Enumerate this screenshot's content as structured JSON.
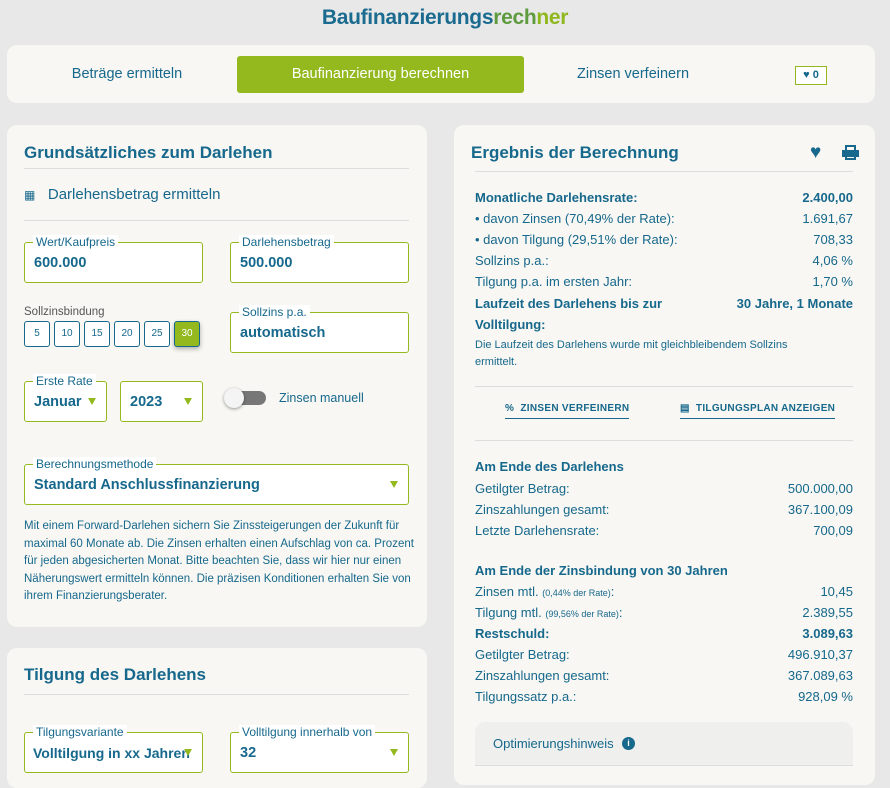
{
  "title": {
    "part1": "Baufinanzierungs",
    "part2": "rech",
    "part3": "ner"
  },
  "nav": {
    "items": [
      "Beträge ermitteln",
      "Baufinanzierung berechnen",
      "Zinsen verfeinern"
    ],
    "favorites_count": "0"
  },
  "colors": {
    "primary": "#16688c",
    "accent": "#93b91f"
  },
  "darlehen": {
    "title": "Grundsätzliches zum Darlehen",
    "calc_link": "Darlehensbetrag ermitteln",
    "kaufpreis": {
      "label": "Wert/Kaufpreis",
      "value": "600.000"
    },
    "betrag": {
      "label": "Darlehensbetrag",
      "value": "500.000"
    },
    "sollzinsbindung": {
      "label": "Sollzinsbindung",
      "options": [
        "5",
        "10",
        "15",
        "20",
        "25",
        "30"
      ],
      "selected": "30"
    },
    "sollzins": {
      "label": "Sollzins p.a.",
      "value": "automatisch"
    },
    "erste_rate": {
      "label": "Erste Rate",
      "month": "Januar",
      "year": "2023"
    },
    "zinsen_manuell": {
      "label": "Zinsen manuell",
      "on": false
    },
    "methode": {
      "label": "Berechnungsmethode",
      "value": "Standard Anschlussfinanzierung"
    },
    "hinweis": "Mit einem Forward-Darlehen sichern Sie Zinssteigerungen der Zukunft für maximal 60 Monate ab. Die Zinsen erhalten einen Aufschlag von ca. Prozent für jeden abgesicherten Monat. Bitte beachten Sie, dass wir hier nur einen Näherungswert ermitteln können. Die präzisen Konditionen erhalten Sie von ihrem Finanzierungsberater."
  },
  "tilgung": {
    "title": "Tilgung des Darlehens",
    "variante": {
      "label": "Tilgungsvariante",
      "value": "Volltilgung in xx Jahren"
    },
    "innerhalb": {
      "label": "Volltilgung innerhalb von",
      "value": "32"
    }
  },
  "ergebnis": {
    "title": "Ergebnis der Berechnung",
    "rows": [
      {
        "label": "Monatliche Darlehensrate:",
        "value": "2.400,00",
        "bold": true
      },
      {
        "label": "• davon Zinsen (70,49% der Rate):",
        "value": "1.691,67"
      },
      {
        "label": "• davon Tilgung (29,51% der Rate):",
        "value": "708,33"
      },
      {
        "label": "Sollzins p.a.:",
        "value": "4,06 %"
      },
      {
        "label": "Tilgung p.a. im ersten Jahr:",
        "value": "1,70 %"
      }
    ],
    "laufzeit": {
      "label": "Laufzeit des Darlehens bis zur Volltilgung:",
      "value": "30 Jahre, 1 Monate"
    },
    "laufzeit_note": "Die Laufzeit des Darlehens wurde mit gleichbleibendem Sollzins ermittelt.",
    "link_zinsen": "ZINSEN VERFEINERN",
    "link_plan": "TILGUNGSPLAN ANZEIGEN",
    "ende": {
      "title": "Am Ende des Darlehens",
      "rows": [
        {
          "label": "Getilgter Betrag:",
          "value": "500.000,00"
        },
        {
          "label": "Zinszahlungen gesamt:",
          "value": "367.100,09"
        },
        {
          "label": "Letzte Darlehensrate:",
          "value": "700,09"
        }
      ]
    },
    "zinsbindung": {
      "title": "Am Ende der Zinsbindung von 30 Jahren",
      "zinsen_label": "Zinsen mtl.",
      "zinsen_note": "(0,44% der Rate)",
      "zinsen_value": "10,45",
      "tilgung_label": "Tilgung mtl.",
      "tilgung_note": "(99,56% der Rate)",
      "tilgung_value": "2.389,55",
      "rows": [
        {
          "label": "Restschuld:",
          "value": "3.089,63"
        },
        {
          "label": "Getilgter Betrag:",
          "value": "496.910,37"
        },
        {
          "label": "Zinszahlungen gesamt:",
          "value": "367.089,63"
        },
        {
          "label": "Tilgungssatz p.a.:",
          "value": "928,09 %"
        }
      ]
    },
    "optimierung": "Optimierungshinweis"
  }
}
